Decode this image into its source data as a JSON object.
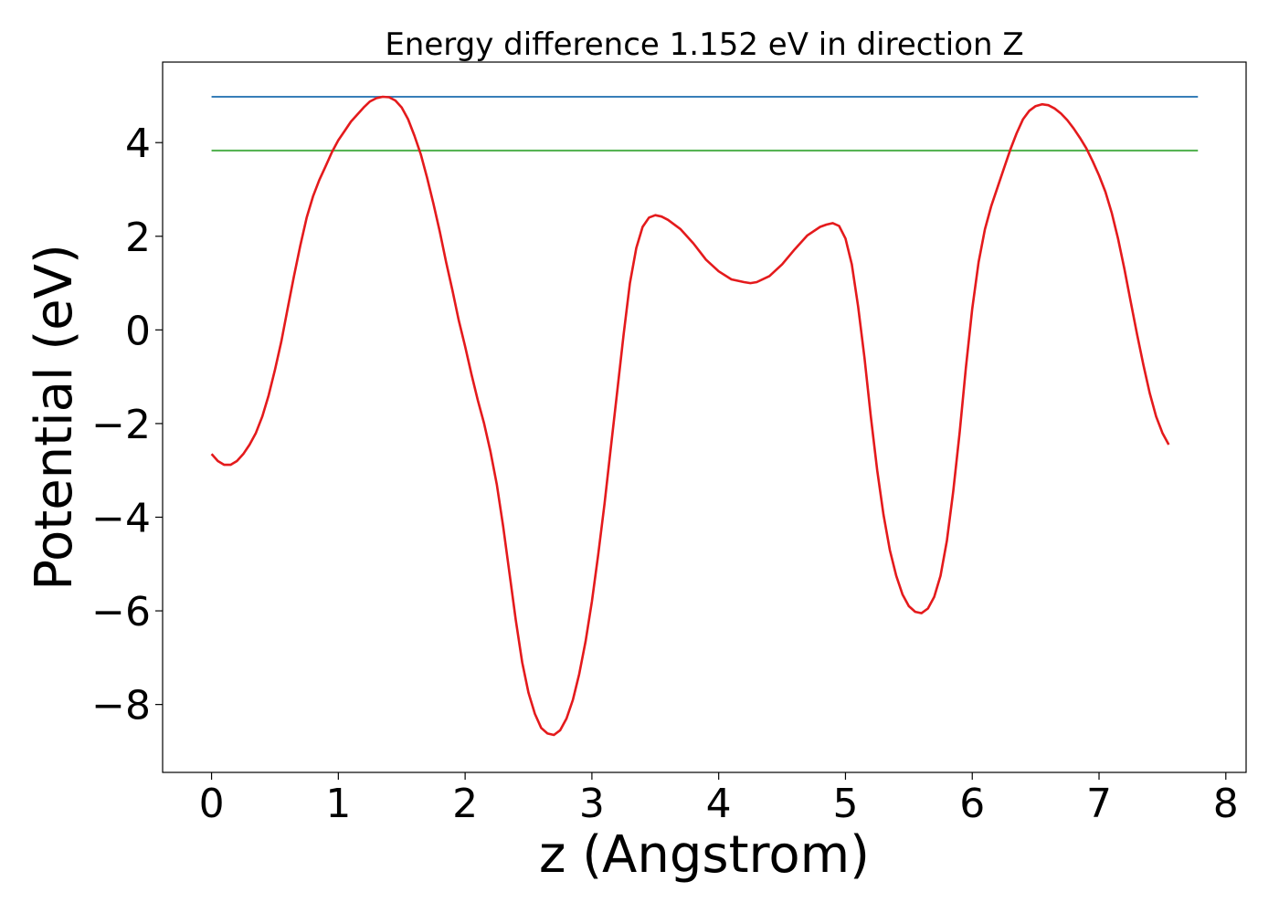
{
  "chart_data": {
    "type": "line",
    "title": "Energy difference 1.152 eV in direction Z",
    "xlabel": "z (Angstrom)",
    "ylabel": "Potential (eV)",
    "xlim": [
      -0.386,
      8.16
    ],
    "ylim": [
      -9.45,
      5.72
    ],
    "xticks": [
      0,
      1,
      2,
      3,
      4,
      5,
      6,
      7,
      8
    ],
    "yticks": [
      -8,
      -6,
      -4,
      -2,
      0,
      2,
      4
    ],
    "grid": false,
    "colors": {
      "potential": "#e41a1c",
      "upper_level": "#377eb8",
      "lower_level": "#4daf4a"
    },
    "hlines": [
      {
        "y": 4.98,
        "xmin": 0,
        "xmax": 7.78,
        "color": "#377eb8"
      },
      {
        "y": 3.83,
        "xmin": 0,
        "xmax": 7.78,
        "color": "#4daf4a"
      }
    ],
    "series": [
      {
        "color": "#e41a1c",
        "points": [
          [
            0.0,
            -2.65
          ],
          [
            0.05,
            -2.8
          ],
          [
            0.1,
            -2.88
          ],
          [
            0.15,
            -2.88
          ],
          [
            0.2,
            -2.8
          ],
          [
            0.25,
            -2.65
          ],
          [
            0.3,
            -2.45
          ],
          [
            0.35,
            -2.2
          ],
          [
            0.4,
            -1.85
          ],
          [
            0.45,
            -1.4
          ],
          [
            0.5,
            -0.85
          ],
          [
            0.55,
            -0.25
          ],
          [
            0.6,
            0.45
          ],
          [
            0.65,
            1.15
          ],
          [
            0.7,
            1.8
          ],
          [
            0.75,
            2.4
          ],
          [
            0.8,
            2.85
          ],
          [
            0.85,
            3.2
          ],
          [
            0.9,
            3.5
          ],
          [
            0.95,
            3.8
          ],
          [
            1.0,
            4.05
          ],
          [
            1.05,
            4.25
          ],
          [
            1.1,
            4.45
          ],
          [
            1.15,
            4.6
          ],
          [
            1.2,
            4.75
          ],
          [
            1.25,
            4.88
          ],
          [
            1.3,
            4.95
          ],
          [
            1.35,
            4.98
          ],
          [
            1.4,
            4.97
          ],
          [
            1.45,
            4.9
          ],
          [
            1.5,
            4.75
          ],
          [
            1.55,
            4.5
          ],
          [
            1.6,
            4.15
          ],
          [
            1.65,
            3.75
          ],
          [
            1.7,
            3.25
          ],
          [
            1.75,
            2.7
          ],
          [
            1.8,
            2.1
          ],
          [
            1.85,
            1.45
          ],
          [
            1.9,
            0.85
          ],
          [
            1.95,
            0.2
          ],
          [
            2.0,
            -0.35
          ],
          [
            2.05,
            -0.95
          ],
          [
            2.1,
            -1.5
          ],
          [
            2.15,
            -2.0
          ],
          [
            2.2,
            -2.6
          ],
          [
            2.25,
            -3.3
          ],
          [
            2.3,
            -4.2
          ],
          [
            2.35,
            -5.2
          ],
          [
            2.4,
            -6.2
          ],
          [
            2.45,
            -7.1
          ],
          [
            2.5,
            -7.75
          ],
          [
            2.55,
            -8.2
          ],
          [
            2.6,
            -8.5
          ],
          [
            2.65,
            -8.62
          ],
          [
            2.7,
            -8.65
          ],
          [
            2.75,
            -8.55
          ],
          [
            2.8,
            -8.3
          ],
          [
            2.85,
            -7.9
          ],
          [
            2.9,
            -7.35
          ],
          [
            2.95,
            -6.65
          ],
          [
            3.0,
            -5.8
          ],
          [
            3.05,
            -4.8
          ],
          [
            3.1,
            -3.7
          ],
          [
            3.15,
            -2.5
          ],
          [
            3.2,
            -1.3
          ],
          [
            3.25,
            -0.1
          ],
          [
            3.3,
            1.0
          ],
          [
            3.35,
            1.75
          ],
          [
            3.4,
            2.2
          ],
          [
            3.45,
            2.4
          ],
          [
            3.5,
            2.45
          ],
          [
            3.55,
            2.42
          ],
          [
            3.6,
            2.35
          ],
          [
            3.7,
            2.15
          ],
          [
            3.8,
            1.85
          ],
          [
            3.9,
            1.5
          ],
          [
            4.0,
            1.25
          ],
          [
            4.1,
            1.08
          ],
          [
            4.2,
            1.02
          ],
          [
            4.25,
            1.0
          ],
          [
            4.3,
            1.02
          ],
          [
            4.4,
            1.15
          ],
          [
            4.5,
            1.4
          ],
          [
            4.6,
            1.72
          ],
          [
            4.7,
            2.02
          ],
          [
            4.8,
            2.2
          ],
          [
            4.85,
            2.25
          ],
          [
            4.9,
            2.28
          ],
          [
            4.95,
            2.22
          ],
          [
            5.0,
            1.95
          ],
          [
            5.05,
            1.4
          ],
          [
            5.1,
            0.5
          ],
          [
            5.15,
            -0.6
          ],
          [
            5.2,
            -1.85
          ],
          [
            5.25,
            -3.0
          ],
          [
            5.3,
            -3.95
          ],
          [
            5.35,
            -4.7
          ],
          [
            5.4,
            -5.25
          ],
          [
            5.45,
            -5.65
          ],
          [
            5.5,
            -5.9
          ],
          [
            5.55,
            -6.02
          ],
          [
            5.6,
            -6.05
          ],
          [
            5.65,
            -5.95
          ],
          [
            5.7,
            -5.7
          ],
          [
            5.75,
            -5.25
          ],
          [
            5.8,
            -4.5
          ],
          [
            5.85,
            -3.45
          ],
          [
            5.9,
            -2.2
          ],
          [
            5.95,
            -0.8
          ],
          [
            6.0,
            0.45
          ],
          [
            6.05,
            1.45
          ],
          [
            6.1,
            2.15
          ],
          [
            6.15,
            2.65
          ],
          [
            6.2,
            3.05
          ],
          [
            6.25,
            3.45
          ],
          [
            6.3,
            3.85
          ],
          [
            6.35,
            4.2
          ],
          [
            6.4,
            4.5
          ],
          [
            6.45,
            4.68
          ],
          [
            6.5,
            4.78
          ],
          [
            6.55,
            4.82
          ],
          [
            6.6,
            4.8
          ],
          [
            6.65,
            4.73
          ],
          [
            6.7,
            4.62
          ],
          [
            6.75,
            4.48
          ],
          [
            6.8,
            4.3
          ],
          [
            6.85,
            4.1
          ],
          [
            6.9,
            3.88
          ],
          [
            6.95,
            3.6
          ],
          [
            7.0,
            3.3
          ],
          [
            7.05,
            2.95
          ],
          [
            7.1,
            2.5
          ],
          [
            7.15,
            1.95
          ],
          [
            7.2,
            1.3
          ],
          [
            7.25,
            0.6
          ],
          [
            7.3,
            -0.1
          ],
          [
            7.35,
            -0.75
          ],
          [
            7.4,
            -1.35
          ],
          [
            7.45,
            -1.85
          ],
          [
            7.5,
            -2.2
          ],
          [
            7.55,
            -2.45
          ]
        ]
      }
    ]
  }
}
